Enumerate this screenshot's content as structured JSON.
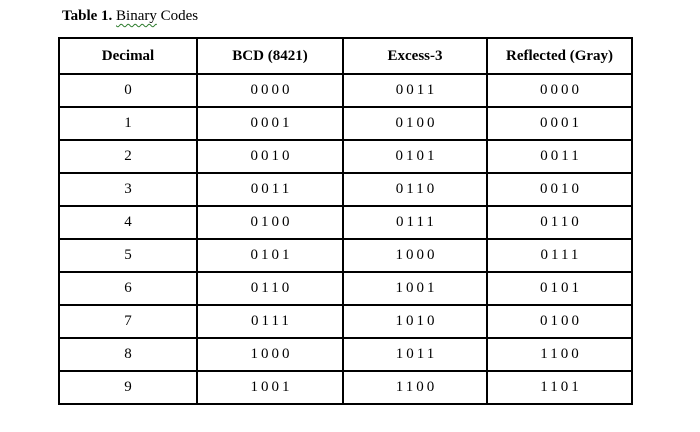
{
  "caption": {
    "prefix": "Table 1.",
    "word1": "Binary",
    "word2": "Codes"
  },
  "table": {
    "headers": [
      "Decimal",
      "BCD (8421)",
      "Excess-3",
      "Reflected (Gray)"
    ],
    "rows": [
      [
        "0",
        "0000",
        "0011",
        "0000"
      ],
      [
        "1",
        "0001",
        "0100",
        "0001"
      ],
      [
        "2",
        "0010",
        "0101",
        "0011"
      ],
      [
        "3",
        "0011",
        "0110",
        "0010"
      ],
      [
        "4",
        "0100",
        "0111",
        "0110"
      ],
      [
        "5",
        "0101",
        "1000",
        "0111"
      ],
      [
        "6",
        "0110",
        "1001",
        "0101"
      ],
      [
        "7",
        "0111",
        "1010",
        "0100"
      ],
      [
        "8",
        "1000",
        "1011",
        "1100"
      ],
      [
        "9",
        "1001",
        "1100",
        "1101"
      ]
    ]
  }
}
